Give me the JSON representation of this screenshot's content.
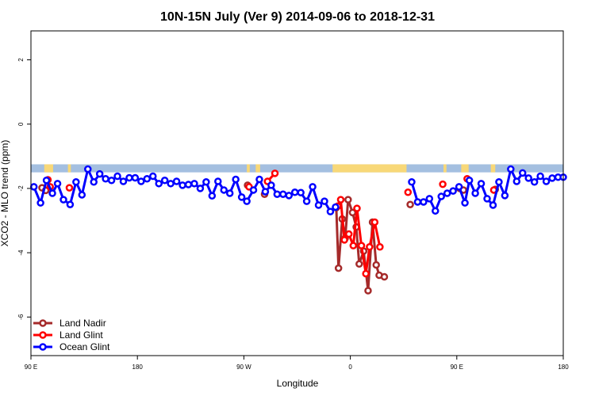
{
  "chart_data": {
    "type": "line",
    "title": "10N-15N July (Ver 9)   2014-09-06 to 2018-12-31",
    "xlabel": "Longitude",
    "ylabel": "XCO2 - MLO trend (ppm)",
    "xlim": [
      0,
      360
    ],
    "ylim": [
      -7.2,
      2.9
    ],
    "x_ticks": [
      {
        "value": 0,
        "label": "90 E"
      },
      {
        "value": 72,
        "label": "180"
      },
      {
        "value": 144,
        "label": "90 W"
      },
      {
        "value": 216,
        "label": "0"
      },
      {
        "value": 288,
        "label": "90 E"
      },
      {
        "value": 360,
        "label": "180"
      }
    ],
    "y_ticks": [
      {
        "value": -6,
        "label": "-6"
      },
      {
        "value": -4,
        "label": "-4"
      },
      {
        "value": -2,
        "label": "-2"
      },
      {
        "value": 0,
        "label": "0"
      },
      {
        "value": 2,
        "label": "2"
      }
    ],
    "grid": false,
    "legend_position": "bottom-left",
    "band": {
      "y_min": -1.5,
      "y_max": -1.25,
      "ocean_color": "#a4bfe0",
      "land_color": "#f8d878"
    },
    "band_land_segments": [
      [
        9,
        15
      ],
      [
        25,
        27
      ],
      [
        146,
        148
      ],
      [
        152,
        155
      ],
      [
        204,
        254
      ],
      [
        279,
        281
      ],
      [
        291,
        296
      ],
      [
        311,
        314
      ]
    ],
    "series": [
      {
        "name": "Land Nadir",
        "color": "#a52a2a",
        "segments": [
          [
            [
              7.5,
              -1.98
            ],
            [
              10,
              -2.06
            ]
          ],
          [
            [
              146.5,
              -1.9
            ]
          ],
          [
            [
              158,
              -2.18
            ]
          ],
          [
            [
              206.5,
              -2.6
            ],
            [
              208,
              -4.48
            ],
            [
              210.5,
              -2.95
            ],
            [
              212.5,
              -3.55
            ],
            [
              214.5,
              -2.35
            ],
            [
              217.5,
              -2.75
            ],
            [
              220,
              -3.2
            ],
            [
              222,
              -4.35
            ],
            [
              225,
              -3.95
            ],
            [
              228,
              -5.18
            ],
            [
              231,
              -3.05
            ],
            [
              233.5,
              -4.38
            ],
            [
              235.5,
              -4.7
            ],
            [
              239,
              -4.75
            ]
          ],
          [
            [
              256.5,
              -2.5
            ]
          ],
          [
            [
              290,
              -2.0
            ],
            [
              292.5,
              -2.05
            ]
          ],
          [
            [
              314,
              -2.03
            ]
          ]
        ]
      },
      {
        "name": "Land Glint",
        "color": "#ff0000",
        "segments": [
          [
            [
              11.5,
              -1.73
            ],
            [
              13,
              -1.95
            ]
          ],
          [
            [
              26,
              -1.98
            ]
          ],
          [
            [
              147.5,
              -1.95
            ]
          ],
          [
            [
              160,
              -1.78
            ],
            [
              165,
              -1.53
            ]
          ],
          [
            [
              207.5,
              -2.55
            ],
            [
              209.5,
              -2.35
            ],
            [
              212,
              -3.6
            ],
            [
              215,
              -3.42
            ],
            [
              218,
              -3.78
            ],
            [
              220.5,
              -2.62
            ],
            [
              223.5,
              -3.78
            ],
            [
              226.5,
              -4.65
            ],
            [
              229,
              -3.82
            ],
            [
              232.5,
              -3.05
            ],
            [
              236,
              -3.82
            ]
          ],
          [
            [
              255,
              -2.12
            ]
          ],
          [
            [
              278.5,
              -1.87
            ]
          ],
          [
            [
              295,
              -1.7
            ]
          ],
          [
            [
              313,
              -2.05
            ]
          ]
        ]
      },
      {
        "name": "Ocean Glint",
        "color": "#0000ff",
        "segments": [
          [
            [
              2,
              -1.95
            ],
            [
              6.5,
              -2.45
            ],
            [
              10.5,
              -1.75
            ],
            [
              14.5,
              -2.15
            ],
            [
              18,
              -1.85
            ],
            [
              22,
              -2.35
            ],
            [
              26.5,
              -2.5
            ],
            [
              30.5,
              -1.8
            ],
            [
              34.5,
              -2.2
            ],
            [
              38.5,
              -1.4
            ],
            [
              42.5,
              -1.8
            ],
            [
              46.5,
              -1.55
            ],
            [
              50.5,
              -1.7
            ],
            [
              54.5,
              -1.75
            ],
            [
              58.5,
              -1.62
            ],
            [
              62.5,
              -1.78
            ],
            [
              66.5,
              -1.67
            ],
            [
              70.5,
              -1.67
            ],
            [
              74.5,
              -1.78
            ],
            [
              78.5,
              -1.7
            ],
            [
              82.5,
              -1.62
            ],
            [
              86.5,
              -1.85
            ],
            [
              90.5,
              -1.75
            ],
            [
              94.5,
              -1.85
            ],
            [
              98.5,
              -1.78
            ],
            [
              102.5,
              -1.9
            ],
            [
              106.5,
              -1.88
            ],
            [
              110.5,
              -1.85
            ],
            [
              114.5,
              -2.0
            ],
            [
              118.5,
              -1.8
            ],
            [
              122.5,
              -2.23
            ],
            [
              126.5,
              -1.78
            ],
            [
              130.5,
              -2.05
            ],
            [
              134.5,
              -2.15
            ],
            [
              138.5,
              -1.72
            ],
            [
              142.5,
              -2.27
            ],
            [
              146,
              -2.4
            ],
            [
              150.5,
              -2.05
            ],
            [
              154.5,
              -1.72
            ],
            [
              158.5,
              -2.1
            ],
            [
              162.5,
              -1.9
            ],
            [
              166.5,
              -2.18
            ],
            [
              170.5,
              -2.18
            ],
            [
              174.5,
              -2.22
            ],
            [
              178.5,
              -2.12
            ],
            [
              182.5,
              -2.13
            ],
            [
              186.5,
              -2.4
            ],
            [
              190.5,
              -1.95
            ],
            [
              194.5,
              -2.52
            ],
            [
              198.5,
              -2.4
            ],
            [
              202.5,
              -2.72
            ],
            [
              206,
              -2.58
            ]
          ],
          [
            [
              257.5,
              -1.8
            ],
            [
              261.5,
              -2.42
            ],
            [
              265.5,
              -2.42
            ],
            [
              269.5,
              -2.32
            ],
            [
              273.5,
              -2.7
            ],
            [
              277.5,
              -2.25
            ],
            [
              281.5,
              -2.15
            ],
            [
              285.5,
              -2.08
            ],
            [
              289.5,
              -1.95
            ],
            [
              293.5,
              -2.45
            ],
            [
              296.5,
              -1.75
            ],
            [
              300.5,
              -2.15
            ],
            [
              304.5,
              -1.85
            ],
            [
              308.5,
              -2.32
            ],
            [
              312.5,
              -2.52
            ],
            [
              316.5,
              -1.8
            ],
            [
              320.5,
              -2.22
            ],
            [
              324.5,
              -1.4
            ],
            [
              328.5,
              -1.78
            ],
            [
              332.5,
              -1.52
            ],
            [
              336.5,
              -1.68
            ],
            [
              340.5,
              -1.8
            ],
            [
              344.5,
              -1.62
            ],
            [
              348.5,
              -1.78
            ],
            [
              352.5,
              -1.68
            ],
            [
              356.5,
              -1.65
            ],
            [
              360,
              -1.65
            ]
          ]
        ]
      }
    ]
  }
}
